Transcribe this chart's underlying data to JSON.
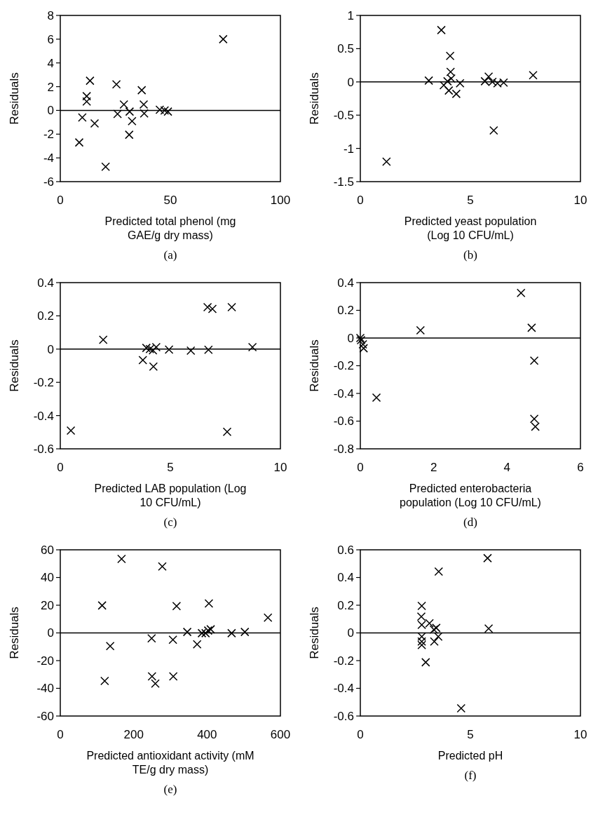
{
  "chart_data": [
    {
      "type": "scatter",
      "xlabel": "Predicted total phenol (mg\nGAE/g dry mass)",
      "ylabel": "Residuals",
      "annotations": [
        "(a)"
      ],
      "marker": "cross",
      "grid": false,
      "xlim": [
        0,
        100
      ],
      "xticks": [
        0,
        50,
        100
      ],
      "ylim": [
        -6,
        8
      ],
      "yticks": [
        -6,
        -4,
        -2,
        0,
        2,
        4,
        6,
        8
      ],
      "ref_lines": [
        {
          "axis": "y",
          "value": 0,
          "color": "#000000"
        }
      ],
      "series": [
        {
          "color": "#000000",
          "x": [
            74,
            13.5,
            25.5,
            37,
            12,
            12,
            10,
            8.6,
            15.6,
            20.6,
            28.9,
            26,
            31.5,
            32.6,
            31.3,
            37.9,
            38.1,
            45.2,
            47.4,
            48.9
          ],
          "values": [
            6,
            2.5,
            2.2,
            1.7,
            1.2,
            0.75,
            -0.6,
            -2.7,
            -1.1,
            -4.75,
            0.5,
            -0.3,
            -0.1,
            -0.9,
            -2.05,
            0.5,
            -0.25,
            0.05,
            0,
            -0.1
          ]
        }
      ]
    },
    {
      "type": "scatter",
      "xlabel": "Predicted yeast population\n(Log 10 CFU/mL)",
      "ylabel": "Residuals",
      "annotations": [
        "(b)"
      ],
      "marker": "cross",
      "grid": false,
      "xlim": [
        0,
        10
      ],
      "xticks": [
        0,
        5,
        10
      ],
      "ylim": [
        -1.5,
        1
      ],
      "yticks": [
        -1.5,
        -1,
        -0.5,
        0,
        0.5,
        1
      ],
      "ref_lines": [
        {
          "axis": "y",
          "value": 0,
          "color": "#000000"
        }
      ],
      "series": [
        {
          "color": "#000000",
          "x": [
            3.68,
            4.08,
            4.1,
            3.11,
            3.79,
            3.96,
            4.02,
            4.13,
            4.36,
            4.53,
            5.66,
            5.83,
            6,
            6.23,
            6.51,
            6.06,
            7.85,
            1.19
          ],
          "values": [
            0.78,
            0.39,
            0.15,
            0.02,
            -0.05,
            0.01,
            -0.13,
            0.05,
            -0.18,
            -0.02,
            0.01,
            0.08,
            0,
            -0.02,
            -0.01,
            -0.73,
            0.1,
            -1.2
          ]
        }
      ]
    },
    {
      "type": "scatter",
      "xlabel": "Predicted LAB population (Log\n10 CFU/mL)",
      "ylabel": "Residuals",
      "annotations": [
        "(c)"
      ],
      "marker": "cross",
      "grid": false,
      "xlim": [
        0,
        10
      ],
      "xticks": [
        0,
        5,
        10
      ],
      "ylim": [
        -0.6,
        0.4
      ],
      "yticks": [
        -0.6,
        -0.4,
        -0.2,
        0,
        0.2,
        0.4
      ],
      "ref_lines": [
        {
          "axis": "y",
          "value": 0,
          "color": "#000000"
        }
      ],
      "series": [
        {
          "color": "#000000",
          "x": [
            0.48,
            1.95,
            3.75,
            3.91,
            4.07,
            4.21,
            4.23,
            4.36,
            4.94,
            5.93,
            6.73,
            6.69,
            6.91,
            7.79,
            7.58,
            8.73
          ],
          "values": [
            -0.49,
            0.056,
            -0.066,
            0.007,
            0,
            -0.007,
            -0.105,
            0.012,
            -0.003,
            -0.009,
            -0.004,
            0.252,
            0.242,
            0.252,
            -0.498,
            0.012
          ]
        }
      ]
    },
    {
      "type": "scatter",
      "xlabel": "Predicted enterobacteria\npopulation (Log 10 CFU/mL)",
      "ylabel": "Residuals",
      "annotations": [
        "(d)"
      ],
      "marker": "cross",
      "grid": false,
      "xlim": [
        0,
        6
      ],
      "xticks": [
        0,
        2,
        4,
        6
      ],
      "ylim": [
        -0.8,
        0.4
      ],
      "yticks": [
        -0.8,
        -0.6,
        -0.4,
        -0.2,
        0,
        0.2,
        0.4
      ],
      "ref_lines": [
        {
          "axis": "y",
          "value": 0,
          "color": "#000000"
        }
      ],
      "series": [
        {
          "color": "#000000",
          "x": [
            0,
            0.02,
            0.07,
            0.09,
            0.44,
            1.64,
            4.38,
            4.67,
            4.74,
            4.74,
            4.77
          ],
          "values": [
            0,
            -0.015,
            -0.046,
            -0.074,
            -0.43,
            0.056,
            0.325,
            0.074,
            -0.163,
            -0.584,
            -0.64
          ]
        }
      ]
    },
    {
      "type": "scatter",
      "xlabel": "Predicted antioxidant activity (mM\nTE/g dry mass)",
      "ylabel": "Residuals",
      "annotations": [
        "(e)"
      ],
      "marker": "cross",
      "grid": false,
      "xlim": [
        0,
        600
      ],
      "xticks": [
        0,
        200,
        400,
        600
      ],
      "ylim": [
        -60,
        60
      ],
      "yticks": [
        -60,
        -40,
        -20,
        0,
        20,
        40,
        60
      ],
      "ref_lines": [
        {
          "axis": "y",
          "value": 0,
          "color": "#000000"
        }
      ],
      "series": [
        {
          "color": "#000000",
          "x": [
            167,
            278,
            114,
            317,
            405,
            566,
            136,
            121,
            249,
            250,
            259,
            307,
            308,
            346,
            373,
            386,
            396,
            403,
            410,
            467,
            503
          ],
          "values": [
            53.4,
            48,
            19.8,
            19.4,
            21.3,
            11,
            -9.5,
            -34.7,
            -3.9,
            -31.4,
            -36.6,
            -4.9,
            -31.4,
            0.7,
            -8.2,
            -0.2,
            -0.2,
            1.7,
            2.6,
            -0.2,
            0.7
          ]
        }
      ]
    },
    {
      "type": "scatter",
      "xlabel": "Predicted pH",
      "ylabel": "Residuals",
      "annotations": [
        "(f)"
      ],
      "marker": "cross",
      "grid": false,
      "xlim": [
        0,
        10
      ],
      "xticks": [
        0,
        5,
        10
      ],
      "ylim": [
        -0.6,
        0.6
      ],
      "yticks": [
        -0.6,
        -0.4,
        -0.2,
        0,
        0.2,
        0.4,
        0.6
      ],
      "ref_lines": [
        {
          "axis": "y",
          "value": 0,
          "color": "#000000"
        }
      ],
      "series": [
        {
          "color": "#000000",
          "x": [
            2.79,
            2.77,
            2.79,
            2.79,
            2.79,
            2.79,
            3.14,
            3.34,
            3.45,
            3.54,
            3.36,
            2.97,
            3.56,
            5.78,
            5.83,
            4.58
          ],
          "values": [
            0.195,
            0.118,
            0.058,
            -0.027,
            -0.062,
            -0.087,
            0.07,
            0.024,
            0.036,
            -0.027,
            -0.062,
            -0.212,
            0.443,
            0.54,
            0.032,
            -0.544
          ]
        }
      ]
    }
  ]
}
